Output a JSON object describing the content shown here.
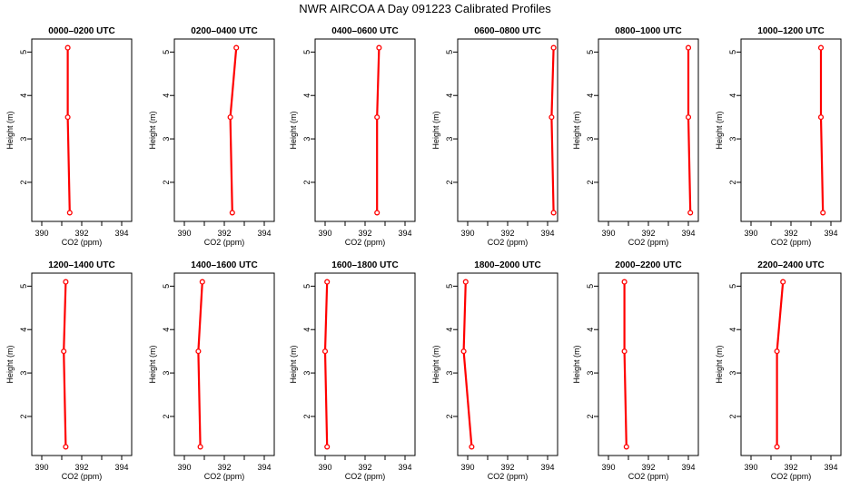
{
  "figure_title": "NWR AIRCOA A  Day 091223  Calibrated Profiles",
  "chart_data": [
    {
      "type": "line",
      "title": "0000–0200 UTC",
      "xlabel": "CO2 (ppm)",
      "ylabel": "Height (m)",
      "xlim": [
        389.5,
        394.5
      ],
      "ylim": [
        1.1,
        5.3
      ],
      "xticks": [
        390,
        392,
        394
      ],
      "xticks_minor": [
        391,
        393
      ],
      "yticks": [
        2,
        3,
        4,
        5
      ],
      "grid": false,
      "series": [
        {
          "color": "#ff0000",
          "points": [
            {
              "x": 391.4,
              "y": 1.3
            },
            {
              "x": 391.3,
              "y": 3.5
            },
            {
              "x": 391.3,
              "y": 5.1
            }
          ]
        }
      ]
    },
    {
      "type": "line",
      "title": "0200–0400 UTC",
      "xlabel": "CO2 (ppm)",
      "ylabel": "Height (m)",
      "xlim": [
        389.5,
        394.5
      ],
      "ylim": [
        1.1,
        5.3
      ],
      "xticks": [
        390,
        392,
        394
      ],
      "xticks_minor": [
        391,
        393
      ],
      "yticks": [
        2,
        3,
        4,
        5
      ],
      "grid": false,
      "series": [
        {
          "color": "#ff0000",
          "points": [
            {
              "x": 392.4,
              "y": 1.3
            },
            {
              "x": 392.3,
              "y": 3.5
            },
            {
              "x": 392.6,
              "y": 5.1
            }
          ]
        }
      ]
    },
    {
      "type": "line",
      "title": "0400–0600 UTC",
      "xlabel": "CO2 (ppm)",
      "ylabel": "Height (m)",
      "xlim": [
        389.5,
        394.5
      ],
      "ylim": [
        1.1,
        5.3
      ],
      "xticks": [
        390,
        392,
        394
      ],
      "xticks_minor": [
        391,
        393
      ],
      "yticks": [
        2,
        3,
        4,
        5
      ],
      "grid": false,
      "series": [
        {
          "color": "#ff0000",
          "points": [
            {
              "x": 392.6,
              "y": 1.3
            },
            {
              "x": 392.6,
              "y": 3.5
            },
            {
              "x": 392.7,
              "y": 5.1
            }
          ]
        }
      ]
    },
    {
      "type": "line",
      "title": "0600–0800 UTC",
      "xlabel": "CO2 (ppm)",
      "ylabel": "Height (m)",
      "xlim": [
        389.5,
        394.5
      ],
      "ylim": [
        1.1,
        5.3
      ],
      "xticks": [
        390,
        392,
        394
      ],
      "xticks_minor": [
        391,
        393
      ],
      "yticks": [
        2,
        3,
        4,
        5
      ],
      "grid": false,
      "series": [
        {
          "color": "#ff0000",
          "points": [
            {
              "x": 394.3,
              "y": 1.3
            },
            {
              "x": 394.2,
              "y": 3.5
            },
            {
              "x": 394.3,
              "y": 5.1
            }
          ]
        }
      ]
    },
    {
      "type": "line",
      "title": "0800–1000 UTC",
      "xlabel": "CO2 (ppm)",
      "ylabel": "Height (m)",
      "xlim": [
        389.5,
        394.5
      ],
      "ylim": [
        1.1,
        5.3
      ],
      "xticks": [
        390,
        392,
        394
      ],
      "xticks_minor": [
        391,
        393
      ],
      "yticks": [
        2,
        3,
        4,
        5
      ],
      "grid": false,
      "series": [
        {
          "color": "#ff0000",
          "points": [
            {
              "x": 394.1,
              "y": 1.3
            },
            {
              "x": 394.0,
              "y": 3.5
            },
            {
              "x": 394.0,
              "y": 5.1
            }
          ]
        }
      ]
    },
    {
      "type": "line",
      "title": "1000–1200 UTC",
      "xlabel": "CO2 (ppm)",
      "ylabel": "Height (m)",
      "xlim": [
        389.5,
        394.5
      ],
      "ylim": [
        1.1,
        5.3
      ],
      "xticks": [
        390,
        392,
        394
      ],
      "xticks_minor": [
        391,
        393
      ],
      "yticks": [
        2,
        3,
        4,
        5
      ],
      "grid": false,
      "series": [
        {
          "color": "#ff0000",
          "points": [
            {
              "x": 393.6,
              "y": 1.3
            },
            {
              "x": 393.5,
              "y": 3.5
            },
            {
              "x": 393.5,
              "y": 5.1
            }
          ]
        }
      ]
    },
    {
      "type": "line",
      "title": "1200–1400 UTC",
      "xlabel": "CO2 (ppm)",
      "ylabel": "Height (m)",
      "xlim": [
        389.5,
        394.5
      ],
      "ylim": [
        1.1,
        5.3
      ],
      "xticks": [
        390,
        392,
        394
      ],
      "xticks_minor": [
        391,
        393
      ],
      "yticks": [
        2,
        3,
        4,
        5
      ],
      "grid": false,
      "series": [
        {
          "color": "#ff0000",
          "points": [
            {
              "x": 391.2,
              "y": 1.3
            },
            {
              "x": 391.1,
              "y": 3.5
            },
            {
              "x": 391.2,
              "y": 5.1
            }
          ]
        }
      ]
    },
    {
      "type": "line",
      "title": "1400–1600 UTC",
      "xlabel": "CO2 (ppm)",
      "ylabel": "Height (m)",
      "xlim": [
        389.5,
        394.5
      ],
      "ylim": [
        1.1,
        5.3
      ],
      "xticks": [
        390,
        392,
        394
      ],
      "xticks_minor": [
        391,
        393
      ],
      "yticks": [
        2,
        3,
        4,
        5
      ],
      "grid": false,
      "series": [
        {
          "color": "#ff0000",
          "points": [
            {
              "x": 390.8,
              "y": 1.3
            },
            {
              "x": 390.7,
              "y": 3.5
            },
            {
              "x": 390.9,
              "y": 5.1
            }
          ]
        }
      ]
    },
    {
      "type": "line",
      "title": "1600–1800 UTC",
      "xlabel": "CO2 (ppm)",
      "ylabel": "Height (m)",
      "xlim": [
        389.5,
        394.5
      ],
      "ylim": [
        1.1,
        5.3
      ],
      "xticks": [
        390,
        392,
        394
      ],
      "xticks_minor": [
        391,
        393
      ],
      "yticks": [
        2,
        3,
        4,
        5
      ],
      "grid": false,
      "series": [
        {
          "color": "#ff0000",
          "points": [
            {
              "x": 390.1,
              "y": 1.3
            },
            {
              "x": 390.0,
              "y": 3.5
            },
            {
              "x": 390.1,
              "y": 5.1
            }
          ]
        }
      ]
    },
    {
      "type": "line",
      "title": "1800–2000 UTC",
      "xlabel": "CO2 (ppm)",
      "ylabel": "Height (m)",
      "xlim": [
        389.5,
        394.5
      ],
      "ylim": [
        1.1,
        5.3
      ],
      "xticks": [
        390,
        392,
        394
      ],
      "xticks_minor": [
        391,
        393
      ],
      "yticks": [
        2,
        3,
        4,
        5
      ],
      "grid": false,
      "series": [
        {
          "color": "#ff0000",
          "points": [
            {
              "x": 390.2,
              "y": 1.3
            },
            {
              "x": 389.8,
              "y": 3.5
            },
            {
              "x": 389.9,
              "y": 5.1
            }
          ]
        }
      ]
    },
    {
      "type": "line",
      "title": "2000–2200 UTC",
      "xlabel": "CO2 (ppm)",
      "ylabel": "Height (m)",
      "xlim": [
        389.5,
        394.5
      ],
      "ylim": [
        1.1,
        5.3
      ],
      "xticks": [
        390,
        392,
        394
      ],
      "xticks_minor": [
        391,
        393
      ],
      "yticks": [
        2,
        3,
        4,
        5
      ],
      "grid": false,
      "series": [
        {
          "color": "#ff0000",
          "points": [
            {
              "x": 390.9,
              "y": 1.3
            },
            {
              "x": 390.8,
              "y": 3.5
            },
            {
              "x": 390.8,
              "y": 5.1
            }
          ]
        }
      ]
    },
    {
      "type": "line",
      "title": "2200–2400 UTC",
      "xlabel": "CO2 (ppm)",
      "ylabel": "Height (m)",
      "xlim": [
        389.5,
        394.5
      ],
      "ylim": [
        1.1,
        5.3
      ],
      "xticks": [
        390,
        392,
        394
      ],
      "xticks_minor": [
        391,
        393
      ],
      "yticks": [
        2,
        3,
        4,
        5
      ],
      "grid": false,
      "series": [
        {
          "color": "#ff0000",
          "points": [
            {
              "x": 391.3,
              "y": 1.3
            },
            {
              "x": 391.3,
              "y": 3.5
            },
            {
              "x": 391.6,
              "y": 5.1
            }
          ]
        }
      ]
    }
  ]
}
